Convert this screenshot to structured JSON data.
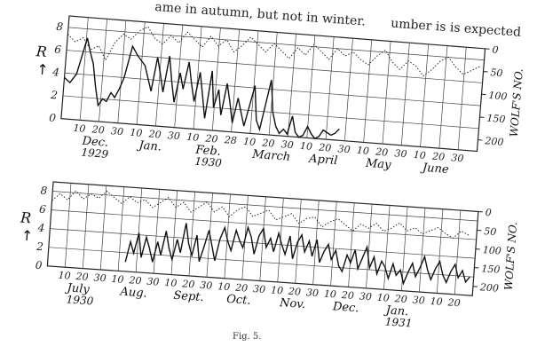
{
  "header_text": "ame in autumn, but not in winter.",
  "header_text_right": "umber is is expected",
  "figure_caption": "Fig. 5.",
  "chart_data": [
    {
      "type": "line",
      "title": "",
      "left_axis_label": "R",
      "left_axis_arrow": "↑",
      "right_axis_label": "WOLF'S NO.",
      "left_ticks": [
        "0",
        "2",
        "4",
        "6",
        "8"
      ],
      "right_ticks": [
        "0",
        "50",
        "100",
        "150",
        "200"
      ],
      "ylim_left": [
        0,
        9
      ],
      "ylim_right": [
        0,
        225
      ],
      "x_tick_labels": [
        "10",
        "20",
        "30",
        "10",
        "20",
        "30",
        "10",
        "20",
        "28",
        "10",
        "20",
        "30",
        "10",
        "20",
        "30",
        "10",
        "20",
        "30",
        "10",
        "20",
        "30"
      ],
      "month_labels": [
        {
          "text": "Dec.",
          "sub": "1929"
        },
        {
          "text": "Jan.",
          "sub": ""
        },
        {
          "text": "Feb.",
          "sub": "1930"
        },
        {
          "text": "March",
          "sub": ""
        },
        {
          "text": "April",
          "sub": ""
        },
        {
          "text": "May",
          "sub": ""
        },
        {
          "text": "June",
          "sub": ""
        }
      ],
      "days_range": [
        0,
        210
      ],
      "series": [
        {
          "style": "solid",
          "axis": "left",
          "x": [
            0,
            3,
            6,
            8,
            10,
            12,
            14,
            16,
            18,
            20,
            22,
            24,
            26,
            28,
            30,
            33,
            36,
            40,
            44,
            46,
            48,
            50,
            52,
            54,
            56,
            58,
            60,
            62,
            64,
            66,
            68,
            70,
            72,
            74,
            76,
            78,
            80,
            82,
            84,
            86,
            88,
            90,
            92,
            94,
            96,
            98,
            100,
            102,
            104,
            106,
            108,
            110,
            112,
            114,
            116,
            118,
            120,
            122,
            124,
            126,
            128,
            130,
            132,
            134,
            136,
            138,
            140
          ],
          "values": [
            3.6,
            3.2,
            4.0,
            5.6,
            7.2,
            6.0,
            5.0,
            3.0,
            1.4,
            2.0,
            1.8,
            2.6,
            2.2,
            3.0,
            4.0,
            6.8,
            6.0,
            5.2,
            3.0,
            6.0,
            4.6,
            3.0,
            6.2,
            4.0,
            2.2,
            4.8,
            3.4,
            5.8,
            4.0,
            2.4,
            5.0,
            3.0,
            1.0,
            5.2,
            2.0,
            3.6,
            1.4,
            4.2,
            2.6,
            0.8,
            3.0,
            1.8,
            0.6,
            2.4,
            4.2,
            1.2,
            0.4,
            2.6,
            4.8,
            2.0,
            0.8,
            0.2,
            0.6,
            0.2,
            1.8,
            0.4,
            0.0,
            0.2,
            1.0,
            0.4,
            0.0,
            0.2,
            0.8,
            0.6,
            0.4,
            0.6,
            1.0
          ]
        },
        {
          "style": "dotted",
          "axis": "right",
          "x": [
            0,
            4,
            8,
            12,
            16,
            20,
            24,
            28,
            32,
            36,
            40,
            44,
            48,
            52,
            56,
            60,
            64,
            68,
            72,
            76,
            80,
            84,
            88,
            92,
            96,
            100,
            104,
            108,
            112,
            116,
            120,
            124,
            128,
            132,
            136,
            140,
            144,
            148,
            152,
            156,
            160,
            164,
            168,
            172,
            176,
            180,
            184,
            188,
            192,
            196,
            200,
            204,
            208
          ],
          "values": [
            40,
            55,
            45,
            70,
            60,
            90,
            50,
            30,
            40,
            20,
            10,
            35,
            45,
            25,
            40,
            15,
            30,
            45,
            20,
            40,
            25,
            50,
            35,
            15,
            30,
            45,
            25,
            40,
            55,
            30,
            45,
            20,
            35,
            50,
            25,
            40,
            30,
            45,
            55,
            35,
            20,
            45,
            60,
            40,
            50,
            70,
            55,
            35,
            25,
            45,
            60,
            50,
            40
          ]
        }
      ]
    },
    {
      "type": "line",
      "title": "",
      "left_axis_label": "R",
      "left_axis_arrow": "↑",
      "right_axis_label": "WOLF'S NO.",
      "left_ticks": [
        "0",
        "2",
        "4",
        "6",
        "8"
      ],
      "right_ticks": [
        "0",
        "50",
        "100",
        "150",
        "200"
      ],
      "ylim_left": [
        0,
        9
      ],
      "ylim_right": [
        0,
        225
      ],
      "x_tick_labels": [
        "10",
        "20",
        "30",
        "10",
        "20",
        "30",
        "10",
        "20",
        "30",
        "10",
        "20",
        "30",
        "10",
        "20",
        "30",
        "10",
        "20",
        "30",
        "10",
        "20",
        "30",
        "10",
        "20"
      ],
      "month_labels": [
        {
          "text": "July",
          "sub": "1930"
        },
        {
          "text": "Aug.",
          "sub": ""
        },
        {
          "text": "Sept.",
          "sub": ""
        },
        {
          "text": "Oct.",
          "sub": ""
        },
        {
          "text": "Nov.",
          "sub": ""
        },
        {
          "text": "Dec.",
          "sub": ""
        },
        {
          "text": "Jan.",
          "sub": "1931"
        }
      ],
      "days_range": [
        0,
        220
      ],
      "series": [
        {
          "style": "solid",
          "axis": "left",
          "x": [
            40,
            42,
            44,
            46,
            48,
            50,
            52,
            54,
            56,
            58,
            60,
            62,
            64,
            66,
            68,
            70,
            72,
            74,
            76,
            78,
            80,
            82,
            84,
            86,
            88,
            90,
            92,
            94,
            96,
            98,
            100,
            102,
            104,
            106,
            108,
            110,
            112,
            114,
            116,
            118,
            120,
            122,
            124,
            126,
            128,
            130,
            132,
            134,
            136,
            138,
            140,
            142,
            144,
            146,
            148,
            150,
            152,
            154,
            156,
            158,
            160,
            162,
            164,
            166,
            168,
            170,
            172,
            174,
            176,
            178,
            180,
            182,
            184,
            186,
            188,
            190,
            192,
            194,
            196,
            198,
            200,
            202,
            204,
            206,
            208,
            210,
            212,
            214,
            216,
            218
          ],
          "values": [
            1.0,
            3.2,
            2.0,
            4.2,
            1.6,
            3.8,
            2.6,
            1.2,
            3.4,
            2.0,
            4.6,
            2.8,
            1.6,
            3.8,
            2.4,
            5.6,
            3.4,
            2.2,
            4.4,
            1.6,
            3.2,
            5.0,
            3.4,
            1.8,
            4.2,
            5.4,
            4.0,
            3.0,
            5.2,
            4.2,
            3.4,
            5.6,
            4.6,
            2.8,
            4.8,
            5.6,
            3.6,
            4.6,
            3.2,
            5.2,
            4.0,
            3.0,
            5.0,
            2.6,
            4.4,
            5.2,
            3.4,
            4.6,
            3.0,
            4.8,
            2.4,
            3.6,
            4.4,
            2.8,
            3.8,
            2.2,
            1.6,
            3.4,
            2.6,
            4.0,
            2.0,
            3.2,
            4.4,
            2.2,
            3.4,
            1.6,
            3.0,
            2.4,
            1.2,
            2.8,
            1.6,
            2.2,
            0.8,
            2.0,
            3.0,
            1.6,
            2.6,
            3.8,
            2.4,
            1.4,
            2.6,
            3.4,
            2.0,
            1.2,
            2.4,
            3.2,
            1.8,
            2.6,
            1.4,
            2.0
          ]
        },
        {
          "style": "dotted",
          "axis": "right",
          "x": [
            0,
            4,
            8,
            12,
            16,
            20,
            24,
            28,
            32,
            36,
            40,
            44,
            48,
            52,
            56,
            60,
            64,
            68,
            72,
            76,
            80,
            84,
            88,
            92,
            96,
            100,
            104,
            108,
            112,
            116,
            120,
            124,
            128,
            132,
            136,
            140,
            144,
            148,
            152,
            156,
            160,
            164,
            168,
            172,
            176,
            180,
            184,
            188,
            192,
            196,
            200,
            204,
            208,
            212,
            216
          ],
          "values": [
            50,
            30,
            45,
            20,
            40,
            25,
            35,
            15,
            30,
            45,
            25,
            40,
            30,
            50,
            35,
            20,
            45,
            30,
            55,
            40,
            25,
            50,
            35,
            60,
            40,
            30,
            55,
            45,
            35,
            60,
            50,
            40,
            65,
            50,
            45,
            70,
            55,
            45,
            60,
            75,
            55,
            65,
            50,
            70,
            60,
            45,
            65,
            55,
            70,
            60,
            50,
            65,
            75,
            55,
            65
          ]
        }
      ]
    }
  ]
}
